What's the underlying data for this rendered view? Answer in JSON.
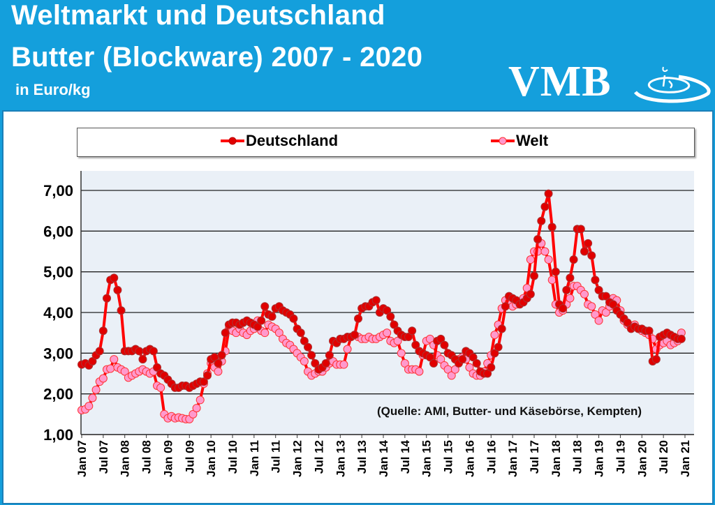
{
  "header": {
    "title_line1": "Weltmarkt und Deutschland",
    "title_line2": "Butter (Blockware) 2007 - 2020",
    "unit": "in Euro/kg",
    "logo_text": "VMB",
    "background_color": "#149fdc"
  },
  "source_note": "(Quelle: AMI, Butter- und Käsebörse, Kempten)",
  "chart_data": {
    "type": "line",
    "title": "Butter (Blockware) 2007 - 2020",
    "ylabel": "in Euro/kg",
    "ylim": [
      1,
      7
    ],
    "yticks": [
      "1,00",
      "2,00",
      "3,00",
      "4,00",
      "5,00",
      "6,00",
      "7,00"
    ],
    "grid": true,
    "legend_position": "top",
    "x_start": "Jan 07",
    "x_frequency": "monthly",
    "xtick_labels": [
      "Jan 07",
      "Jul 07",
      "Jan 08",
      "Jul 08",
      "Jan 09",
      "Jul 09",
      "Jan 10",
      "Jul 10",
      "Jan 11",
      "Jul 11",
      "Jan 12",
      "Jul 12",
      "Jan 13",
      "Jul 13",
      "Jan 14",
      "Jul 14",
      "Jan 15",
      "Jul 15",
      "Jan 16",
      "Jul 16",
      "Jan 17",
      "Jul 17",
      "Jan 18",
      "Jul 18",
      "Jan 19",
      "Jul 19",
      "Jan 20",
      "Jul 20",
      "Jan 21"
    ],
    "series": [
      {
        "name": "Deutschland",
        "color": "#ff0000",
        "marker_color": "#e00000",
        "values": [
          2.72,
          2.75,
          2.7,
          2.8,
          2.95,
          3.05,
          3.55,
          4.35,
          4.8,
          4.85,
          4.55,
          4.05,
          3.05,
          3.05,
          3.05,
          3.1,
          3.05,
          2.85,
          3.05,
          3.1,
          3.05,
          2.65,
          2.5,
          2.45,
          2.35,
          2.25,
          2.15,
          2.15,
          2.2,
          2.2,
          2.15,
          2.2,
          2.25,
          2.3,
          2.3,
          2.45,
          2.85,
          2.9,
          2.75,
          2.95,
          3.5,
          3.7,
          3.75,
          3.75,
          3.7,
          3.75,
          3.8,
          3.75,
          3.7,
          3.65,
          3.8,
          4.15,
          3.95,
          3.9,
          4.1,
          4.15,
          4.05,
          4.0,
          3.95,
          3.85,
          3.6,
          3.5,
          3.3,
          3.15,
          2.95,
          2.75,
          2.6,
          2.65,
          2.75,
          2.95,
          3.3,
          3.25,
          3.35,
          3.35,
          3.4,
          3.4,
          3.45,
          3.85,
          4.1,
          4.15,
          4.15,
          4.25,
          4.3,
          4.0,
          4.1,
          4.05,
          3.9,
          3.7,
          3.55,
          3.45,
          3.4,
          3.4,
          3.55,
          3.2,
          3.05,
          3.0,
          2.95,
          2.9,
          2.75,
          3.3,
          3.35,
          3.2,
          3.0,
          2.95,
          2.85,
          2.75,
          2.85,
          3.05,
          3.0,
          2.9,
          2.75,
          2.55,
          2.5,
          2.5,
          2.65,
          3.0,
          3.15,
          3.6,
          4.15,
          4.4,
          4.35,
          4.3,
          4.2,
          4.25,
          4.35,
          4.45,
          4.9,
          5.8,
          6.25,
          6.6,
          6.92,
          6.1,
          5.0,
          4.2,
          4.1,
          4.55,
          4.85,
          5.3,
          6.05,
          6.05,
          5.5,
          5.7,
          5.4,
          4.8,
          4.55,
          4.4,
          4.4,
          4.25,
          4.2,
          4.05,
          3.95,
          3.85,
          3.75,
          3.6,
          3.65,
          3.6,
          3.6,
          3.55,
          3.55,
          2.8,
          2.85,
          3.4,
          3.45,
          3.5,
          3.45,
          3.4,
          3.35,
          3.35
        ]
      },
      {
        "name": "Welt",
        "color": "#ff0000",
        "marker_color": "#ff99cc",
        "values": [
          1.6,
          1.62,
          1.7,
          1.9,
          2.1,
          2.3,
          2.38,
          2.6,
          2.62,
          2.85,
          2.65,
          2.6,
          2.55,
          2.4,
          2.45,
          2.5,
          2.55,
          2.6,
          2.55,
          2.5,
          2.55,
          2.2,
          2.15,
          1.5,
          1.4,
          1.45,
          1.4,
          1.42,
          1.4,
          1.38,
          1.38,
          1.5,
          1.65,
          1.85,
          2.25,
          2.5,
          2.75,
          2.65,
          2.55,
          2.8,
          3.05,
          3.6,
          3.55,
          3.5,
          3.6,
          3.5,
          3.45,
          3.55,
          3.6,
          3.8,
          3.55,
          3.5,
          3.7,
          3.65,
          3.6,
          3.5,
          3.35,
          3.25,
          3.2,
          3.1,
          3.0,
          2.9,
          2.8,
          2.55,
          2.45,
          2.5,
          2.55,
          2.55,
          2.65,
          2.75,
          2.8,
          2.72,
          2.72,
          2.72,
          3.1,
          3.4,
          3.45,
          3.4,
          3.35,
          3.35,
          3.4,
          3.35,
          3.35,
          3.4,
          3.45,
          3.5,
          3.3,
          3.25,
          3.3,
          3.0,
          2.75,
          2.6,
          2.6,
          2.6,
          2.55,
          2.95,
          3.3,
          3.35,
          3.2,
          2.95,
          2.85,
          2.7,
          2.6,
          2.45,
          2.6,
          2.85,
          2.9,
          2.85,
          2.65,
          2.5,
          2.45,
          2.45,
          2.55,
          2.75,
          2.95,
          3.45,
          3.7,
          4.1,
          4.3,
          4.25,
          4.15,
          4.2,
          4.25,
          4.35,
          4.6,
          5.3,
          5.5,
          5.5,
          5.7,
          5.5,
          5.3,
          4.8,
          4.2,
          4.0,
          4.05,
          4.2,
          4.35,
          4.65,
          4.65,
          4.55,
          4.45,
          4.2,
          4.15,
          3.95,
          3.8,
          4.05,
          4.0,
          4.15,
          4.35,
          4.3,
          4.05,
          3.8,
          3.7,
          3.65,
          3.7,
          3.6,
          3.55,
          3.5,
          3.45,
          3.35,
          3.1,
          3.2,
          3.25,
          3.3,
          3.2,
          3.25,
          3.3,
          3.5
        ]
      }
    ]
  }
}
